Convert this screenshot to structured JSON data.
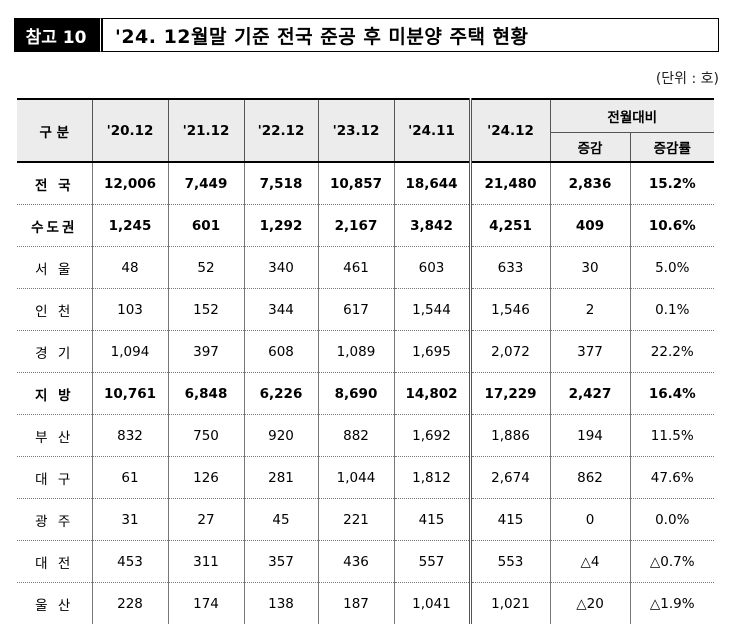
{
  "header": {
    "tag": "참고 10",
    "title": "'24. 12월말 기준 전국 준공 후 미분양 주택 현황"
  },
  "unit": "(단위 : 호)",
  "table": {
    "col_category": "구 분",
    "years": [
      "'20.12",
      "'21.12",
      "'22.12",
      "'23.12",
      "'24.11",
      "'24.12"
    ],
    "group_header": "전월대비",
    "sub_headers": [
      "증감",
      "증감률"
    ],
    "rows": [
      {
        "label": "전 국",
        "values": [
          "12,006",
          "7,449",
          "7,518",
          "10,857",
          "18,644",
          "21,480",
          "2,836",
          "15.2%"
        ],
        "bold": true
      },
      {
        "label": "수도권",
        "values": [
          "1,245",
          "601",
          "1,292",
          "2,167",
          "3,842",
          "4,251",
          "409",
          "10.6%"
        ],
        "bold": true
      },
      {
        "label": "서 울",
        "values": [
          "48",
          "52",
          "340",
          "461",
          "603",
          "633",
          "30",
          "5.0%"
        ],
        "bold": false
      },
      {
        "label": "인 천",
        "values": [
          "103",
          "152",
          "344",
          "617",
          "1,544",
          "1,546",
          "2",
          "0.1%"
        ],
        "bold": false
      },
      {
        "label": "경 기",
        "values": [
          "1,094",
          "397",
          "608",
          "1,089",
          "1,695",
          "2,072",
          "377",
          "22.2%"
        ],
        "bold": false
      },
      {
        "label": "지 방",
        "values": [
          "10,761",
          "6,848",
          "6,226",
          "8,690",
          "14,802",
          "17,229",
          "2,427",
          "16.4%"
        ],
        "bold": true
      },
      {
        "label": "부 산",
        "values": [
          "832",
          "750",
          "920",
          "882",
          "1,692",
          "1,886",
          "194",
          "11.5%"
        ],
        "bold": false
      },
      {
        "label": "대 구",
        "values": [
          "61",
          "126",
          "281",
          "1,044",
          "1,812",
          "2,674",
          "862",
          "47.6%"
        ],
        "bold": false
      },
      {
        "label": "광 주",
        "values": [
          "31",
          "27",
          "45",
          "221",
          "415",
          "415",
          "0",
          "0.0%"
        ],
        "bold": false
      },
      {
        "label": "대 전",
        "values": [
          "453",
          "311",
          "357",
          "436",
          "557",
          "553",
          "△4",
          "△0.7%"
        ],
        "bold": false
      },
      {
        "label": "울 산",
        "values": [
          "228",
          "174",
          "138",
          "187",
          "1,041",
          "1,021",
          "△20",
          "△1.9%"
        ],
        "bold": false
      }
    ]
  }
}
